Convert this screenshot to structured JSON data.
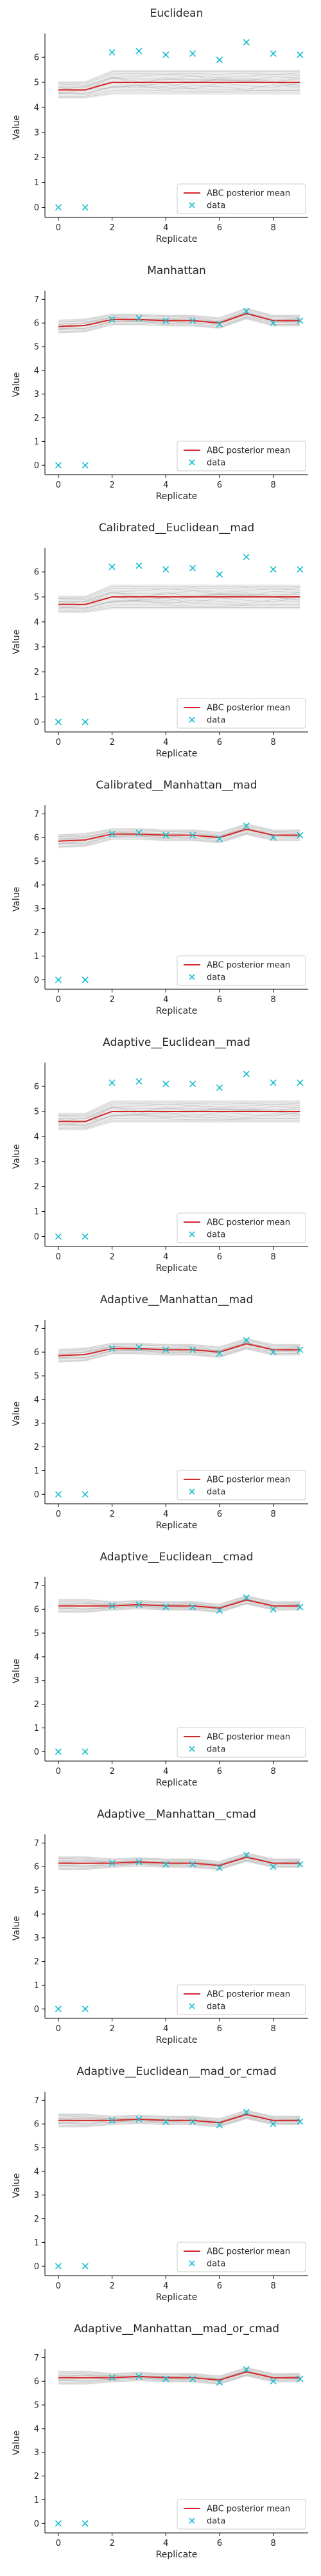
{
  "chart_data": [
    {
      "type": "line",
      "title": "Euclidean",
      "xlabel": "Replicate",
      "ylabel": "Value",
      "x": [
        0,
        1,
        2,
        3,
        4,
        5,
        6,
        7,
        8,
        9
      ],
      "xlim": [
        -0.5,
        9.3
      ],
      "ylim": [
        -0.4,
        6.8
      ],
      "xticks": [
        0,
        2,
        4,
        6,
        8
      ],
      "yticks": [
        0,
        1,
        2,
        3,
        4,
        5,
        6
      ],
      "series": [
        {
          "name": "ABC posterior mean",
          "kind": "line",
          "color": "#d62728",
          "values": [
            4.7,
            4.7,
            5.0,
            5.0,
            5.0,
            5.0,
            5.0,
            5.0,
            5.0,
            5.0
          ]
        },
        {
          "name": "data",
          "kind": "marker",
          "marker": "x",
          "color": "#17becf",
          "values": [
            0.0,
            0.0,
            6.2,
            6.25,
            6.1,
            6.15,
            5.9,
            6.6,
            6.15,
            6.1
          ]
        }
      ],
      "band": {
        "color": "#b0b0b0",
        "halfwidth": [
          0.35,
          0.35,
          0.5,
          0.5,
          0.5,
          0.5,
          0.5,
          0.5,
          0.5,
          0.5
        ]
      },
      "legend": "bottom-right",
      "grid": false
    },
    {
      "type": "line",
      "title": "Manhattan",
      "xlabel": "Replicate",
      "ylabel": "Value",
      "x": [
        0,
        1,
        2,
        3,
        4,
        5,
        6,
        7,
        8,
        9
      ],
      "xlim": [
        -0.5,
        9.3
      ],
      "ylim": [
        -0.4,
        7.2
      ],
      "xticks": [
        0,
        2,
        4,
        6,
        8
      ],
      "yticks": [
        0,
        1,
        2,
        3,
        4,
        5,
        6,
        7
      ],
      "series": [
        {
          "name": "ABC posterior mean",
          "kind": "line",
          "color": "#d62728",
          "values": [
            5.85,
            5.9,
            6.15,
            6.15,
            6.1,
            6.1,
            6.0,
            6.4,
            6.1,
            6.1
          ]
        },
        {
          "name": "data",
          "kind": "marker",
          "marker": "x",
          "color": "#17becf",
          "values": [
            0.0,
            0.0,
            6.15,
            6.2,
            6.1,
            6.1,
            5.95,
            6.5,
            6.0,
            6.1
          ]
        }
      ],
      "band": {
        "color": "#b0b0b0",
        "halfwidth": [
          0.3,
          0.3,
          0.25,
          0.25,
          0.25,
          0.25,
          0.25,
          0.25,
          0.25,
          0.25
        ]
      },
      "legend": "bottom-right",
      "grid": false
    },
    {
      "type": "line",
      "title": "Calibrated__Euclidean__mad",
      "xlabel": "Replicate",
      "ylabel": "Value",
      "x": [
        0,
        1,
        2,
        3,
        4,
        5,
        6,
        7,
        8,
        9
      ],
      "xlim": [
        -0.5,
        9.3
      ],
      "ylim": [
        -0.4,
        6.8
      ],
      "xticks": [
        0,
        2,
        4,
        6,
        8
      ],
      "yticks": [
        0,
        1,
        2,
        3,
        4,
        5,
        6
      ],
      "series": [
        {
          "name": "ABC posterior mean",
          "kind": "line",
          "color": "#d62728",
          "values": [
            4.7,
            4.7,
            5.0,
            5.0,
            5.0,
            5.0,
            5.0,
            5.0,
            5.0,
            5.0
          ]
        },
        {
          "name": "data",
          "kind": "marker",
          "marker": "x",
          "color": "#17becf",
          "values": [
            0.0,
            0.0,
            6.2,
            6.25,
            6.1,
            6.15,
            5.9,
            6.6,
            6.1,
            6.1
          ]
        }
      ],
      "band": {
        "color": "#b0b0b0",
        "halfwidth": [
          0.35,
          0.35,
          0.5,
          0.5,
          0.5,
          0.5,
          0.5,
          0.5,
          0.5,
          0.5
        ]
      },
      "legend": "bottom-right",
      "grid": false
    },
    {
      "type": "line",
      "title": "Calibrated__Manhattan__mad",
      "xlabel": "Replicate",
      "ylabel": "Value",
      "x": [
        0,
        1,
        2,
        3,
        4,
        5,
        6,
        7,
        8,
        9
      ],
      "xlim": [
        -0.5,
        9.3
      ],
      "ylim": [
        -0.4,
        7.2
      ],
      "xticks": [
        0,
        2,
        4,
        6,
        8
      ],
      "yticks": [
        0,
        1,
        2,
        3,
        4,
        5,
        6,
        7
      ],
      "series": [
        {
          "name": "ABC posterior mean",
          "kind": "line",
          "color": "#d62728",
          "values": [
            5.85,
            5.9,
            6.15,
            6.15,
            6.1,
            6.1,
            6.0,
            6.35,
            6.1,
            6.1
          ]
        },
        {
          "name": "data",
          "kind": "marker",
          "marker": "x",
          "color": "#17becf",
          "values": [
            0.0,
            0.0,
            6.15,
            6.2,
            6.1,
            6.1,
            5.95,
            6.5,
            6.0,
            6.1
          ]
        }
      ],
      "band": {
        "color": "#b0b0b0",
        "halfwidth": [
          0.3,
          0.3,
          0.25,
          0.25,
          0.25,
          0.25,
          0.25,
          0.25,
          0.25,
          0.25
        ]
      },
      "legend": "bottom-right",
      "grid": false
    },
    {
      "type": "line",
      "title": "Adaptive__Euclidean__mad",
      "xlabel": "Replicate",
      "ylabel": "Value",
      "x": [
        0,
        1,
        2,
        3,
        4,
        5,
        6,
        7,
        8,
        9
      ],
      "xlim": [
        -0.5,
        9.3
      ],
      "ylim": [
        -0.4,
        6.8
      ],
      "xticks": [
        0,
        2,
        4,
        6,
        8
      ],
      "yticks": [
        0,
        1,
        2,
        3,
        4,
        5,
        6
      ],
      "series": [
        {
          "name": "ABC posterior mean",
          "kind": "line",
          "color": "#d62728",
          "values": [
            4.6,
            4.6,
            5.0,
            5.0,
            5.0,
            5.0,
            5.0,
            5.0,
            5.0,
            5.0
          ]
        },
        {
          "name": "data",
          "kind": "marker",
          "marker": "x",
          "color": "#17becf",
          "values": [
            0.0,
            0.0,
            6.15,
            6.2,
            6.1,
            6.1,
            5.95,
            6.5,
            6.15,
            6.15
          ]
        }
      ],
      "band": {
        "color": "#b0b0b0",
        "halfwidth": [
          0.35,
          0.35,
          0.45,
          0.45,
          0.45,
          0.45,
          0.45,
          0.45,
          0.45,
          0.45
        ]
      },
      "legend": "bottom-right",
      "grid": false
    },
    {
      "type": "line",
      "title": "Adaptive__Manhattan__mad",
      "xlabel": "Replicate",
      "ylabel": "Value",
      "x": [
        0,
        1,
        2,
        3,
        4,
        5,
        6,
        7,
        8,
        9
      ],
      "xlim": [
        -0.5,
        9.3
      ],
      "ylim": [
        -0.4,
        7.2
      ],
      "xticks": [
        0,
        2,
        4,
        6,
        8
      ],
      "yticks": [
        0,
        1,
        2,
        3,
        4,
        5,
        6,
        7
      ],
      "series": [
        {
          "name": "ABC posterior mean",
          "kind": "line",
          "color": "#d62728",
          "values": [
            5.85,
            5.9,
            6.15,
            6.15,
            6.1,
            6.1,
            6.0,
            6.35,
            6.1,
            6.1
          ]
        },
        {
          "name": "data",
          "kind": "marker",
          "marker": "x",
          "color": "#17becf",
          "values": [
            0.0,
            0.0,
            6.15,
            6.2,
            6.1,
            6.1,
            5.95,
            6.5,
            6.0,
            6.1
          ]
        }
      ],
      "band": {
        "color": "#b0b0b0",
        "halfwidth": [
          0.3,
          0.3,
          0.25,
          0.25,
          0.25,
          0.25,
          0.25,
          0.25,
          0.25,
          0.25
        ]
      },
      "legend": "bottom-right",
      "grid": false
    },
    {
      "type": "line",
      "title": "Adaptive__Euclidean__cmad",
      "xlabel": "Replicate",
      "ylabel": "Value",
      "x": [
        0,
        1,
        2,
        3,
        4,
        5,
        6,
        7,
        8,
        9
      ],
      "xlim": [
        -0.5,
        9.3
      ],
      "ylim": [
        -0.4,
        7.2
      ],
      "xticks": [
        0,
        2,
        4,
        6,
        8
      ],
      "yticks": [
        0,
        1,
        2,
        3,
        4,
        5,
        6,
        7
      ],
      "series": [
        {
          "name": "ABC posterior mean",
          "kind": "line",
          "color": "#d62728",
          "values": [
            6.15,
            6.15,
            6.15,
            6.2,
            6.15,
            6.15,
            6.05,
            6.4,
            6.15,
            6.15
          ]
        },
        {
          "name": "data",
          "kind": "marker",
          "marker": "x",
          "color": "#17becf",
          "values": [
            0.0,
            0.0,
            6.15,
            6.2,
            6.1,
            6.1,
            5.95,
            6.5,
            6.0,
            6.1
          ]
        }
      ],
      "band": {
        "color": "#b0b0b0",
        "halfwidth": [
          0.3,
          0.3,
          0.2,
          0.2,
          0.2,
          0.2,
          0.2,
          0.2,
          0.2,
          0.2
        ]
      },
      "legend": "bottom-right",
      "grid": false
    },
    {
      "type": "line",
      "title": "Adaptive__Manhattan__cmad",
      "xlabel": "Replicate",
      "ylabel": "Value",
      "x": [
        0,
        1,
        2,
        3,
        4,
        5,
        6,
        7,
        8,
        9
      ],
      "xlim": [
        -0.5,
        9.3
      ],
      "ylim": [
        -0.4,
        7.2
      ],
      "xticks": [
        0,
        2,
        4,
        6,
        8
      ],
      "yticks": [
        0,
        1,
        2,
        3,
        4,
        5,
        6,
        7
      ],
      "series": [
        {
          "name": "ABC posterior mean",
          "kind": "line",
          "color": "#d62728",
          "values": [
            6.15,
            6.15,
            6.15,
            6.2,
            6.15,
            6.15,
            6.05,
            6.4,
            6.15,
            6.15
          ]
        },
        {
          "name": "data",
          "kind": "marker",
          "marker": "x",
          "color": "#17becf",
          "values": [
            0.0,
            0.0,
            6.15,
            6.2,
            6.1,
            6.1,
            5.95,
            6.5,
            6.0,
            6.1
          ]
        }
      ],
      "band": {
        "color": "#b0b0b0",
        "halfwidth": [
          0.3,
          0.3,
          0.2,
          0.2,
          0.2,
          0.2,
          0.2,
          0.2,
          0.2,
          0.2
        ]
      },
      "legend": "bottom-right",
      "grid": false
    },
    {
      "type": "line",
      "title": "Adaptive__Euclidean__mad_or_cmad",
      "xlabel": "Replicate",
      "ylabel": "Value",
      "x": [
        0,
        1,
        2,
        3,
        4,
        5,
        6,
        7,
        8,
        9
      ],
      "xlim": [
        -0.5,
        9.3
      ],
      "ylim": [
        -0.4,
        7.2
      ],
      "xticks": [
        0,
        2,
        4,
        6,
        8
      ],
      "yticks": [
        0,
        1,
        2,
        3,
        4,
        5,
        6,
        7
      ],
      "series": [
        {
          "name": "ABC posterior mean",
          "kind": "line",
          "color": "#d62728",
          "values": [
            6.15,
            6.15,
            6.15,
            6.2,
            6.15,
            6.15,
            6.05,
            6.4,
            6.15,
            6.15
          ]
        },
        {
          "name": "data",
          "kind": "marker",
          "marker": "x",
          "color": "#17becf",
          "values": [
            0.0,
            0.0,
            6.15,
            6.2,
            6.1,
            6.1,
            5.95,
            6.5,
            6.0,
            6.1
          ]
        }
      ],
      "band": {
        "color": "#b0b0b0",
        "halfwidth": [
          0.3,
          0.3,
          0.2,
          0.2,
          0.2,
          0.2,
          0.2,
          0.2,
          0.2,
          0.2
        ]
      },
      "legend": "bottom-right",
      "grid": false
    },
    {
      "type": "line",
      "title": "Adaptive__Manhattan__mad_or_cmad",
      "xlabel": "Replicate",
      "ylabel": "Value",
      "x": [
        0,
        1,
        2,
        3,
        4,
        5,
        6,
        7,
        8,
        9
      ],
      "xlim": [
        -0.5,
        9.3
      ],
      "ylim": [
        -0.4,
        7.2
      ],
      "xticks": [
        0,
        2,
        4,
        6,
        8
      ],
      "yticks": [
        0,
        1,
        2,
        3,
        4,
        5,
        6,
        7
      ],
      "series": [
        {
          "name": "ABC posterior mean",
          "kind": "line",
          "color": "#d62728",
          "values": [
            6.15,
            6.15,
            6.15,
            6.2,
            6.15,
            6.15,
            6.05,
            6.4,
            6.15,
            6.15
          ]
        },
        {
          "name": "data",
          "kind": "marker",
          "marker": "x",
          "color": "#17becf",
          "values": [
            0.0,
            0.0,
            6.15,
            6.2,
            6.1,
            6.1,
            5.95,
            6.5,
            6.0,
            6.1
          ]
        }
      ],
      "band": {
        "color": "#b0b0b0",
        "halfwidth": [
          0.3,
          0.3,
          0.2,
          0.2,
          0.2,
          0.2,
          0.2,
          0.2,
          0.2,
          0.2
        ]
      },
      "legend": "bottom-right",
      "grid": false
    }
  ]
}
